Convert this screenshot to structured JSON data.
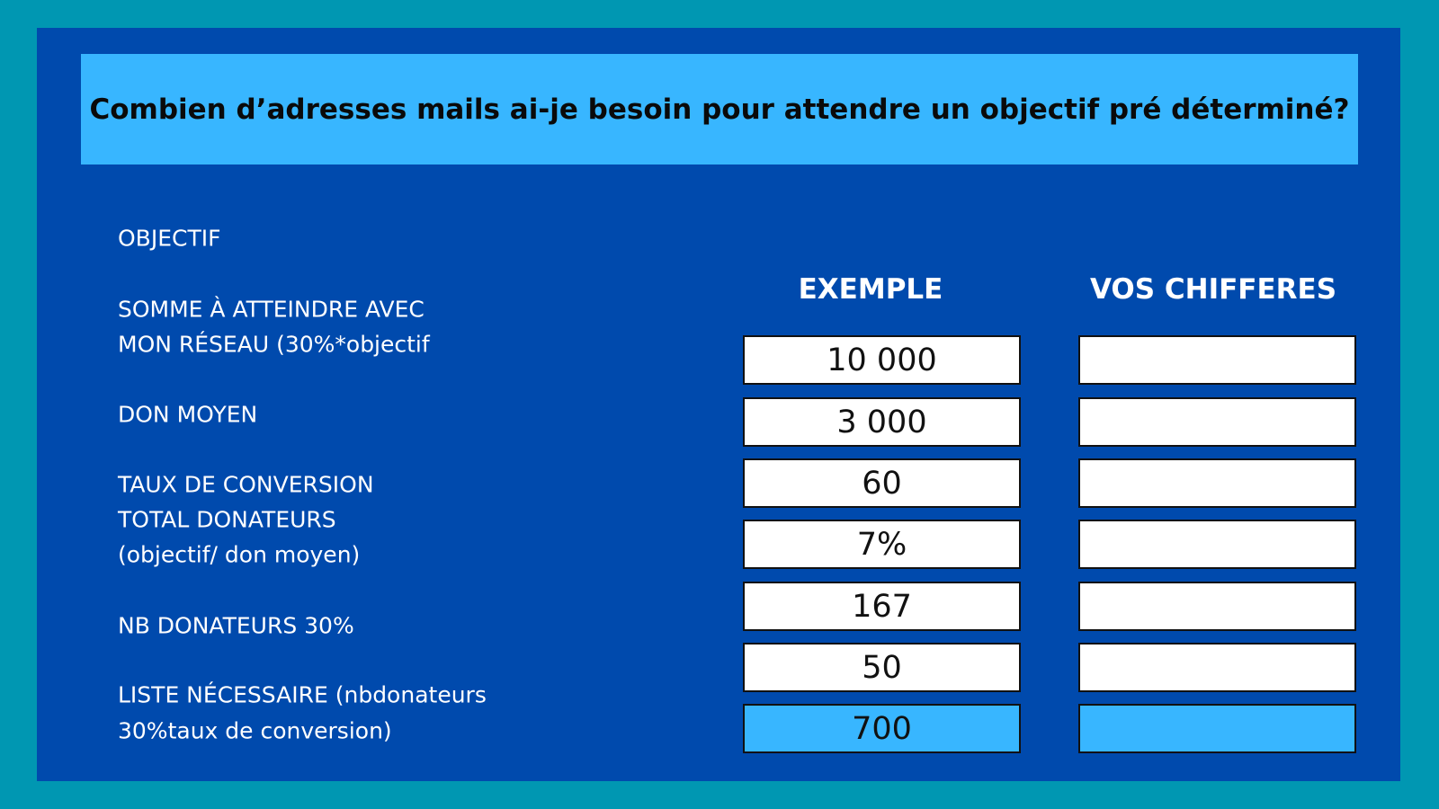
{
  "title": "Combien d’adresses mails ai-je besoin pour attendre un objectif pré déterminé?",
  "labels": [
    [
      "OBJECTIF"
    ],
    [
      "SOMME À ATTEINDRE AVEC",
      "MON RÉSEAU (30%*objectif"
    ],
    [
      "DON MOYEN"
    ],
    [
      "TAUX DE CONVERSION",
      "TOTAL DONATEURS",
      "(objectif/ don moyen)"
    ],
    [
      "NB DONATEURS 30%"
    ],
    [
      "LISTE NÉCESSAIRE (nbdonateurs",
      "30%taux de conversion)"
    ]
  ],
  "columns": [
    "EXEMPLE",
    "VOS CHIFFERES"
  ],
  "example_values": [
    "10 000",
    "3 000",
    "60",
    "7%",
    "167",
    "50",
    "700"
  ]
}
